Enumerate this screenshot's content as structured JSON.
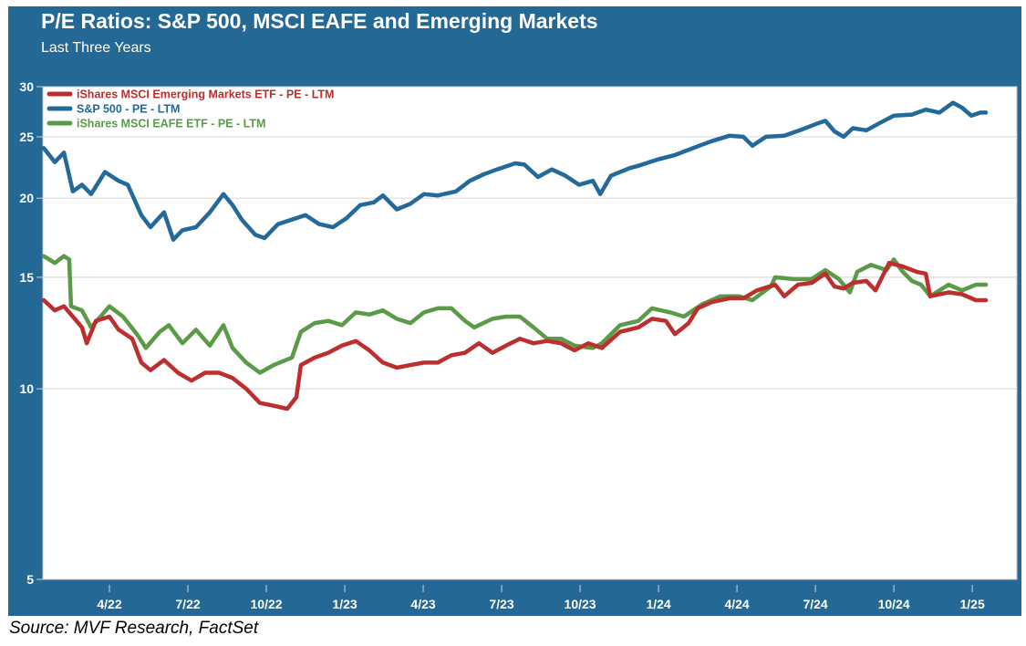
{
  "chart_data": {
    "type": "line",
    "title": "P/E Ratios: S&P 500, MSCI EAFE and Emerging Markets",
    "subtitle": "Last Three Years",
    "xlabel": "",
    "ylabel": "",
    "x_units": "months since Jan 2022",
    "xlim": [
      0.5,
      37.7
    ],
    "ylim": [
      5,
      30
    ],
    "yscale": "log",
    "yticks": [
      5,
      10,
      15,
      20,
      25,
      30
    ],
    "xticks": [
      {
        "x": 3,
        "label": "4/22"
      },
      {
        "x": 6,
        "label": "7/22"
      },
      {
        "x": 9,
        "label": "10/22"
      },
      {
        "x": 12,
        "label": "1/23"
      },
      {
        "x": 15,
        "label": "4/23"
      },
      {
        "x": 18,
        "label": "7/23"
      },
      {
        "x": 21,
        "label": "10/23"
      },
      {
        "x": 24,
        "label": "1/24"
      },
      {
        "x": 27,
        "label": "4/24"
      },
      {
        "x": 30,
        "label": "7/24"
      },
      {
        "x": 33,
        "label": "10/24"
      },
      {
        "x": 36,
        "label": "1/25"
      }
    ],
    "grid": true,
    "legend_position": "top-left",
    "series": [
      {
        "name": "iShares MSCI Emerging Markets ETF - PE - LTM",
        "color": "#bd2e2e",
        "x": [
          0.49,
          0.91,
          1.26,
          1.6,
          1.95,
          2.13,
          2.48,
          3.0,
          3.35,
          3.87,
          4.22,
          4.57,
          5.09,
          5.62,
          6.14,
          6.66,
          7.19,
          7.71,
          8.23,
          8.75,
          9.28,
          9.8,
          10.15,
          10.32,
          10.85,
          11.37,
          11.89,
          12.42,
          12.94,
          13.46,
          13.99,
          14.51,
          15.03,
          15.56,
          16.08,
          16.6,
          17.13,
          17.65,
          18.17,
          18.7,
          19.22,
          19.74,
          20.27,
          20.79,
          21.31,
          21.83,
          22.53,
          23.23,
          23.75,
          24.28,
          24.63,
          25.15,
          25.5,
          26.02,
          26.72,
          27.24,
          27.76,
          28.46,
          28.81,
          29.33,
          29.86,
          30.38,
          30.73,
          31.08,
          31.43,
          31.95,
          32.3,
          32.82,
          33.34,
          33.87,
          34.22,
          34.39,
          35.09,
          35.61,
          36.14,
          36.52
        ],
        "y": [
          13.8,
          13.3,
          13.5,
          13.0,
          12.5,
          11.8,
          12.8,
          13.0,
          12.4,
          12.0,
          11.0,
          10.7,
          11.1,
          10.6,
          10.3,
          10.6,
          10.6,
          10.4,
          10.0,
          9.5,
          9.4,
          9.3,
          9.7,
          10.9,
          11.2,
          11.4,
          11.7,
          11.9,
          11.5,
          11.0,
          10.8,
          10.9,
          11.0,
          11.0,
          11.3,
          11.4,
          11.8,
          11.4,
          11.7,
          12.0,
          11.8,
          11.9,
          11.8,
          11.5,
          11.8,
          11.6,
          12.3,
          12.5,
          12.9,
          12.8,
          12.2,
          12.7,
          13.4,
          13.7,
          13.9,
          13.9,
          14.3,
          14.6,
          14.0,
          14.6,
          14.7,
          15.2,
          14.5,
          14.4,
          14.7,
          14.8,
          14.3,
          15.8,
          15.6,
          15.3,
          15.2,
          14.0,
          14.2,
          14.1,
          13.8,
          13.8
        ]
      },
      {
        "name": "S&P 500 - PE - LTM",
        "color": "#23699a",
        "x": [
          0.49,
          0.91,
          1.26,
          1.6,
          1.95,
          2.3,
          2.83,
          3.35,
          3.7,
          4.22,
          4.57,
          5.09,
          5.44,
          5.79,
          6.31,
          6.84,
          7.36,
          7.71,
          8.06,
          8.58,
          8.93,
          9.45,
          9.98,
          10.5,
          11.02,
          11.55,
          12.07,
          12.59,
          13.11,
          13.46,
          13.99,
          14.51,
          15.03,
          15.56,
          16.25,
          16.78,
          17.3,
          17.82,
          18.52,
          18.87,
          19.39,
          19.92,
          20.44,
          20.96,
          21.49,
          21.77,
          22.18,
          22.88,
          23.23,
          23.93,
          24.63,
          25.32,
          26.02,
          26.72,
          27.24,
          27.59,
          28.11,
          28.81,
          29.51,
          30.03,
          30.38,
          30.73,
          31.08,
          31.43,
          31.95,
          32.47,
          33.0,
          33.69,
          34.22,
          34.74,
          35.26,
          35.61,
          35.96,
          36.31,
          36.52
        ],
        "y": [
          24.0,
          22.8,
          23.6,
          20.5,
          21.0,
          20.3,
          22.0,
          21.3,
          21.0,
          18.8,
          18.0,
          19.0,
          17.2,
          17.8,
          18.0,
          19.0,
          20.3,
          19.5,
          18.5,
          17.5,
          17.3,
          18.2,
          18.5,
          18.8,
          18.2,
          18.0,
          18.6,
          19.5,
          19.7,
          20.2,
          19.2,
          19.6,
          20.3,
          20.2,
          20.5,
          21.3,
          21.8,
          22.2,
          22.7,
          22.6,
          21.6,
          22.2,
          21.7,
          21.0,
          21.3,
          20.3,
          21.7,
          22.3,
          22.5,
          23.0,
          23.4,
          24.0,
          24.6,
          25.1,
          25.0,
          24.2,
          25.0,
          25.1,
          25.7,
          26.2,
          26.5,
          25.5,
          25.0,
          25.8,
          25.6,
          26.3,
          27.0,
          27.1,
          27.6,
          27.3,
          28.3,
          27.8,
          27.0,
          27.3,
          27.3
        ]
      },
      {
        "name": "iShares MSCI EAFE ETF - PE - LTM",
        "color": "#5a9a48",
        "x": [
          0.49,
          0.91,
          1.26,
          1.46,
          1.53,
          1.95,
          2.3,
          3.0,
          3.52,
          4.05,
          4.39,
          4.92,
          5.27,
          5.79,
          6.31,
          6.84,
          7.36,
          7.71,
          8.23,
          8.75,
          9.28,
          9.98,
          10.32,
          10.85,
          11.37,
          11.89,
          12.42,
          12.94,
          13.46,
          13.99,
          14.51,
          15.03,
          15.56,
          16.08,
          16.6,
          16.95,
          17.65,
          18.17,
          18.7,
          19.22,
          19.74,
          20.27,
          20.79,
          21.49,
          21.83,
          22.53,
          23.23,
          23.75,
          24.45,
          24.97,
          25.67,
          26.37,
          27.07,
          27.59,
          28.29,
          28.46,
          29.16,
          29.86,
          30.38,
          30.9,
          31.32,
          31.6,
          32.12,
          32.72,
          33.0,
          33.34,
          33.69,
          34.04,
          34.39,
          35.09,
          35.61,
          36.14,
          36.52
        ],
        "y": [
          16.2,
          15.8,
          16.2,
          16.0,
          13.5,
          13.3,
          12.5,
          13.5,
          13.0,
          12.2,
          11.6,
          12.3,
          12.6,
          11.8,
          12.4,
          11.7,
          12.6,
          11.6,
          11.0,
          10.6,
          10.9,
          11.2,
          12.3,
          12.7,
          12.8,
          12.6,
          13.2,
          13.1,
          13.3,
          12.9,
          12.7,
          13.2,
          13.4,
          13.4,
          12.8,
          12.5,
          12.9,
          13.0,
          13.0,
          12.5,
          12.0,
          12.0,
          11.7,
          11.6,
          11.8,
          12.6,
          12.8,
          13.4,
          13.2,
          13.0,
          13.6,
          14.0,
          14.0,
          13.8,
          14.5,
          15.0,
          14.9,
          14.9,
          15.4,
          14.9,
          14.2,
          15.3,
          15.7,
          15.4,
          16.0,
          15.3,
          14.8,
          14.6,
          14.0,
          14.6,
          14.3,
          14.6,
          14.6
        ]
      }
    ]
  },
  "source": "Source: MVF Research, FactSet"
}
